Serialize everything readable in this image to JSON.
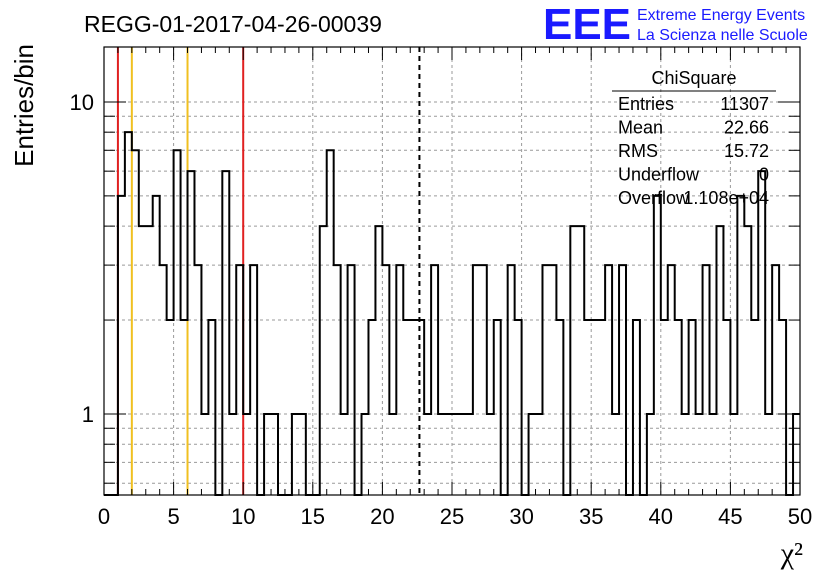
{
  "title": "REGG-01-2017-04-26-00039",
  "logo": {
    "text": "EEE",
    "line1": "Extreme Energy Events",
    "line2": "La Scienza nelle Scuole",
    "color": "#1a1aff"
  },
  "stats": {
    "name": "ChiSquare",
    "rows": [
      {
        "label": "Entries",
        "value": "11307"
      },
      {
        "label": "Mean",
        "value": "22.66"
      },
      {
        "label": "RMS",
        "value": "15.72"
      },
      {
        "label": "Underflow",
        "value": "0"
      },
      {
        "label": "Overflow",
        "value": "1.108e+04"
      }
    ]
  },
  "chart_data": {
    "type": "histogram",
    "xlabel": "χ²",
    "ylabel": "Entries/bin",
    "xlim": [
      0,
      50
    ],
    "ylim": [
      0.55,
      15
    ],
    "yscale": "log",
    "grid": true,
    "x_ticks": [
      "0",
      "5",
      "10",
      "15",
      "20",
      "25",
      "30",
      "35",
      "40",
      "45",
      "50"
    ],
    "y_ticks": [
      "1",
      "10"
    ],
    "bin_width": 0.5,
    "counts": [
      0,
      0,
      5,
      8,
      7,
      4,
      4,
      5,
      3,
      2,
      7,
      2,
      6,
      3,
      1,
      2,
      0,
      6,
      1,
      3,
      1,
      3,
      0,
      1,
      1,
      0,
      0,
      1,
      1,
      0,
      0,
      4,
      7,
      3,
      1,
      3,
      0,
      1,
      2,
      4,
      3,
      1,
      3,
      2,
      2,
      2,
      1,
      3,
      1,
      1,
      1,
      1,
      1,
      3,
      3,
      1,
      2,
      0,
      3,
      2,
      0,
      1,
      1,
      3,
      3,
      2,
      0,
      4,
      4,
      2,
      2,
      2,
      3,
      1,
      3,
      0,
      2,
      0,
      1,
      5,
      2,
      3,
      2,
      1,
      2,
      1,
      3,
      1,
      4,
      2,
      1,
      5,
      4,
      2,
      6,
      1,
      3,
      2,
      0,
      1
    ],
    "vlines": [
      {
        "x": 1,
        "color": "#e02020",
        "style": "solid"
      },
      {
        "x": 2,
        "color": "#f0c020",
        "style": "solid"
      },
      {
        "x": 6,
        "color": "#f0c020",
        "style": "solid"
      },
      {
        "x": 10,
        "color": "#e02020",
        "style": "solid"
      },
      {
        "x": 22.66,
        "color": "#000000",
        "style": "dashed"
      }
    ]
  }
}
